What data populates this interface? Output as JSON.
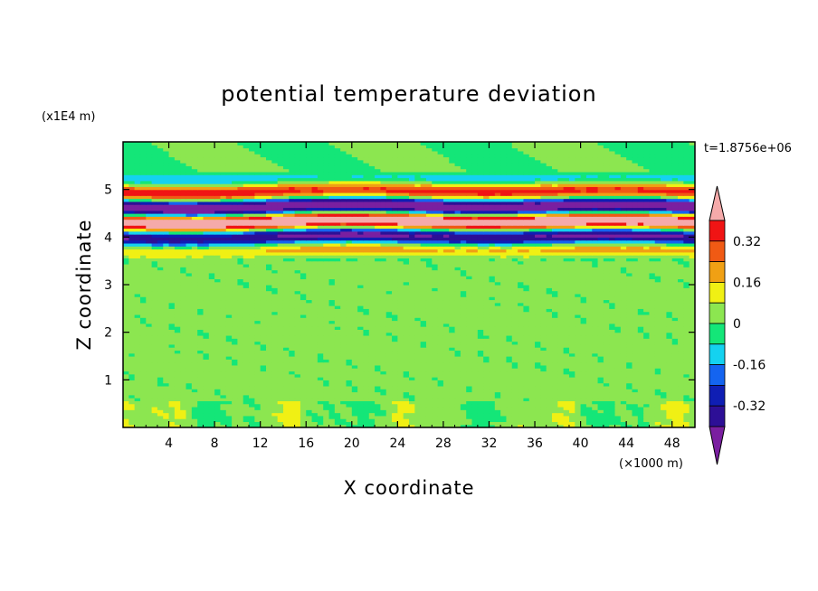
{
  "chart_data": {
    "type": "heatmap",
    "title": "potential temperature deviation",
    "xlabel": "X coordinate",
    "ylabel": "Z coordinate",
    "x_unit": "(×1000 m)",
    "y_unit": "(x1E4 m)",
    "time_label": "t=1.8756e+06",
    "xlim": [
      0,
      50
    ],
    "ylim": [
      0,
      6
    ],
    "x_ticks": [
      4,
      8,
      12,
      16,
      20,
      24,
      28,
      32,
      36,
      40,
      44,
      48
    ],
    "x_tick_labels": [
      "4",
      "8",
      "12",
      "16",
      "20",
      "24",
      "28",
      "32",
      "36",
      "40",
      "44",
      "48"
    ],
    "y_ticks": [
      1,
      2,
      3,
      4,
      5
    ],
    "y_tick_labels": [
      "1",
      "2",
      "3",
      "4",
      "5"
    ],
    "colorbar": {
      "levels": [
        -0.4,
        -0.32,
        -0.24,
        -0.16,
        -0.08,
        0,
        0.08,
        0.16,
        0.24,
        0.32,
        0.4
      ],
      "tick_values": [
        -0.32,
        -0.16,
        0,
        0.16,
        0.32
      ],
      "tick_labels": [
        "-0.32",
        "-0.16",
        "0",
        "0.16",
        "0.32"
      ],
      "colors": [
        "#7a1fa0",
        "#2d0f96",
        "#0f1eb4",
        "#1464f0",
        "#14d2f0",
        "#14e678",
        "#8ce650",
        "#f0f014",
        "#f0a014",
        "#f05a14",
        "#f01414",
        "#f5aaaa"
      ],
      "extend": "both"
    }
  }
}
